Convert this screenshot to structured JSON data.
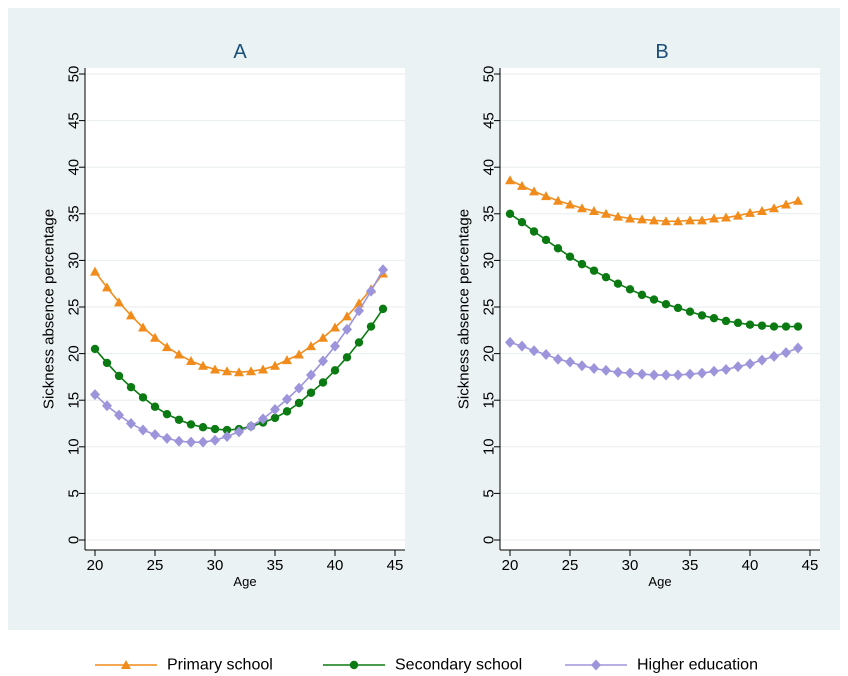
{
  "chart_data": [
    {
      "type": "line",
      "title": "A",
      "xlabel": "Age",
      "ylabel": "Sickness absence percentage",
      "xlim": [
        20,
        45
      ],
      "ylim": [
        0,
        50
      ],
      "xticks": [
        "20",
        "25",
        "30",
        "35",
        "40",
        "45"
      ],
      "yticks": [
        "0",
        "5",
        "10",
        "15",
        "20",
        "25",
        "30",
        "35",
        "40",
        "45",
        "50"
      ],
      "grid": true,
      "x": [
        20,
        21,
        22,
        23,
        24,
        25,
        26,
        27,
        28,
        29,
        30,
        31,
        32,
        33,
        34,
        35,
        36,
        37,
        38,
        39,
        40,
        41,
        42,
        43,
        44
      ],
      "series": [
        {
          "name": "Primary school",
          "values": [
            28.8,
            27.1,
            25.5,
            24.1,
            22.8,
            21.7,
            20.7,
            19.9,
            19.2,
            18.7,
            18.3,
            18.1,
            18.0,
            18.1,
            18.3,
            18.7,
            19.3,
            19.9,
            20.8,
            21.7,
            22.8,
            24.0,
            25.4,
            26.9,
            28.6
          ]
        },
        {
          "name": "Secondary school",
          "values": [
            20.5,
            19.0,
            17.6,
            16.4,
            15.3,
            14.3,
            13.5,
            12.9,
            12.4,
            12.1,
            11.9,
            11.8,
            11.9,
            12.2,
            12.6,
            13.1,
            13.8,
            14.7,
            15.8,
            16.9,
            18.2,
            19.6,
            21.2,
            22.9,
            24.8
          ]
        },
        {
          "name": "Higher education",
          "values": [
            15.6,
            14.4,
            13.4,
            12.5,
            11.8,
            11.3,
            10.9,
            10.6,
            10.5,
            10.5,
            10.7,
            11.1,
            11.6,
            12.2,
            13.0,
            14.0,
            15.1,
            16.3,
            17.7,
            19.2,
            20.8,
            22.6,
            24.6,
            26.7,
            29.0
          ]
        }
      ]
    },
    {
      "type": "line",
      "title": "B",
      "xlabel": "Age",
      "ylabel": "Sickness absence percentage",
      "xlim": [
        20,
        45
      ],
      "ylim": [
        0,
        50
      ],
      "xticks": [
        "20",
        "25",
        "30",
        "35",
        "40",
        "45"
      ],
      "yticks": [
        "0",
        "5",
        "10",
        "15",
        "20",
        "25",
        "30",
        "35",
        "40",
        "45",
        "50"
      ],
      "grid": true,
      "x": [
        20,
        21,
        22,
        23,
        24,
        25,
        26,
        27,
        28,
        29,
        30,
        31,
        32,
        33,
        34,
        35,
        36,
        37,
        38,
        39,
        40,
        41,
        42,
        43,
        44
      ],
      "series": [
        {
          "name": "Primary school",
          "values": [
            38.6,
            38.0,
            37.4,
            36.9,
            36.4,
            36.0,
            35.6,
            35.3,
            35.0,
            34.7,
            34.5,
            34.4,
            34.3,
            34.2,
            34.2,
            34.3,
            34.3,
            34.5,
            34.6,
            34.8,
            35.1,
            35.3,
            35.6,
            36.0,
            36.4
          ]
        },
        {
          "name": "Secondary school",
          "values": [
            35.0,
            34.1,
            33.1,
            32.2,
            31.3,
            30.4,
            29.6,
            28.9,
            28.2,
            27.5,
            26.9,
            26.3,
            25.8,
            25.3,
            24.9,
            24.5,
            24.1,
            23.8,
            23.5,
            23.3,
            23.1,
            23.0,
            22.9,
            22.9,
            22.9
          ]
        },
        {
          "name": "Higher education",
          "values": [
            21.2,
            20.8,
            20.3,
            19.9,
            19.4,
            19.1,
            18.7,
            18.4,
            18.2,
            18.0,
            17.9,
            17.8,
            17.7,
            17.7,
            17.7,
            17.8,
            17.9,
            18.1,
            18.3,
            18.6,
            18.9,
            19.3,
            19.7,
            20.1,
            20.6
          ]
        }
      ]
    }
  ],
  "legend": {
    "placement": "bottom",
    "items": [
      {
        "label": "Primary school",
        "color": "#f18c1c",
        "marker": "triangle"
      },
      {
        "label": "Secondary school",
        "color": "#0c7a12",
        "marker": "circle"
      },
      {
        "label": "Higher education",
        "color": "#9d95db",
        "marker": "diamond"
      }
    ]
  }
}
